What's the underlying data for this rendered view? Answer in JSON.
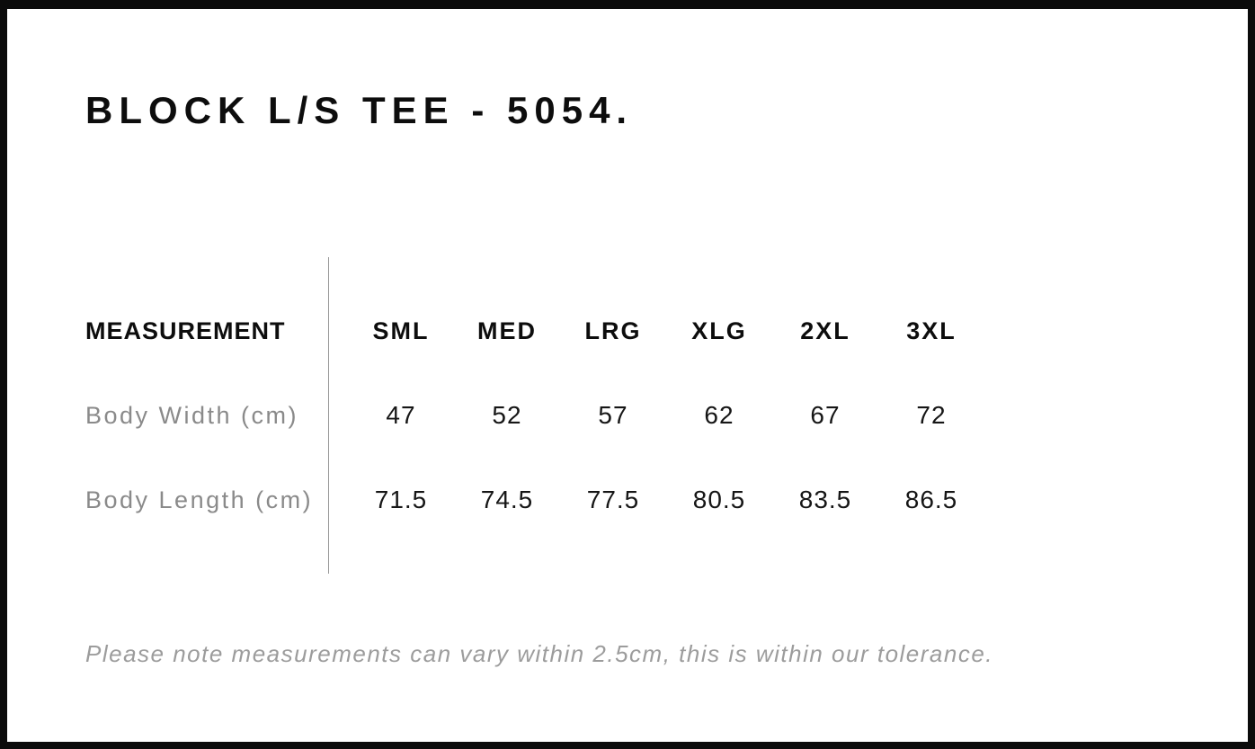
{
  "page": {
    "title": "BLOCK L/S TEE - 5054.",
    "tolerance_note": "Please note measurements can vary within 2.5cm, this is within our tolerance."
  },
  "size_chart": {
    "measurement_header": "MEASUREMENT",
    "size_headers": [
      "SML",
      "MED",
      "LRG",
      "XLG",
      "2XL",
      "3XL"
    ],
    "rows": [
      {
        "label": "Body Width (cm)",
        "values": [
          "47",
          "52",
          "57",
          "62",
          "67",
          "72"
        ]
      },
      {
        "label": "Body Length (cm)",
        "values": [
          "71.5",
          "74.5",
          "77.5",
          "80.5",
          "83.5",
          "86.5"
        ]
      }
    ]
  },
  "appearance": {
    "border_color": "#0b0b0b",
    "heading_text_color": "#0d0d0d",
    "value_text_color": "#161616",
    "label_text_color": "#8a8a8a",
    "note_text_color": "#9c9c9c",
    "divider_color": "#979797",
    "background_color": "#ffffff"
  }
}
